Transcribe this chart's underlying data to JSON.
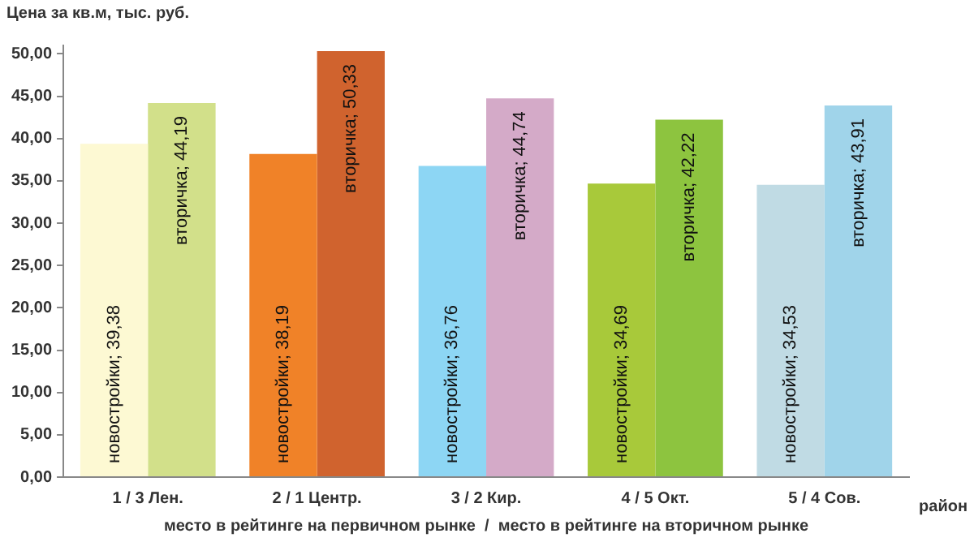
{
  "chart_data": {
    "type": "bar",
    "ylabel": "Цена за кв.м, тыс. руб.",
    "xlabel": "место в рейтинге на первичном рынке  /  место в рейтинге на вторичном рынке",
    "annotations": [
      "район"
    ],
    "categories": [
      "1 / 3 Лен.",
      "2 / 1 Центр.",
      "3 / 2 Кир.",
      "4 / 5 Окт.",
      "5 / 4 Сов."
    ],
    "series": [
      {
        "colors": [
          "#fdf9d3",
          "#f08228",
          "#8dd6f4",
          "#a8c93a",
          "#c0dbe4"
        ],
        "values": [
          39.38,
          38.19,
          36.76,
          34.69,
          34.53
        ],
        "value_labels": [
          "новостройки; 39,38",
          "новостройки; 38,19",
          "новостройки; 36,76",
          "новостройки; 34,69",
          "новостройки; 34,53"
        ]
      },
      {
        "colors": [
          "#d2e08a",
          "#d0632e",
          "#d4aac8",
          "#8dc43f",
          "#a0d4ea"
        ],
        "values": [
          44.19,
          50.33,
          44.74,
          42.22,
          43.91
        ],
        "value_labels": [
          "вторичка; 44,19",
          "вторичка; 50,33",
          "вторичка; 44,74",
          "вторичка; 42,22",
          "вторичка; 43,91"
        ]
      }
    ],
    "ylim": [
      0,
      51
    ],
    "yticks": [
      {
        "value": 0,
        "label": "0,00"
      },
      {
        "value": 5,
        "label": "5,00"
      },
      {
        "value": 10,
        "label": "10,00"
      },
      {
        "value": 15,
        "label": "15,00"
      },
      {
        "value": 20,
        "label": "20,00"
      },
      {
        "value": 25,
        "label": "25,00"
      },
      {
        "value": 30,
        "label": "30,00"
      },
      {
        "value": 35,
        "label": "35,00"
      },
      {
        "value": 40,
        "label": "40,00"
      },
      {
        "value": 45,
        "label": "45,00"
      },
      {
        "value": 50,
        "label": "50,00"
      }
    ],
    "grid": false,
    "legend": false
  }
}
